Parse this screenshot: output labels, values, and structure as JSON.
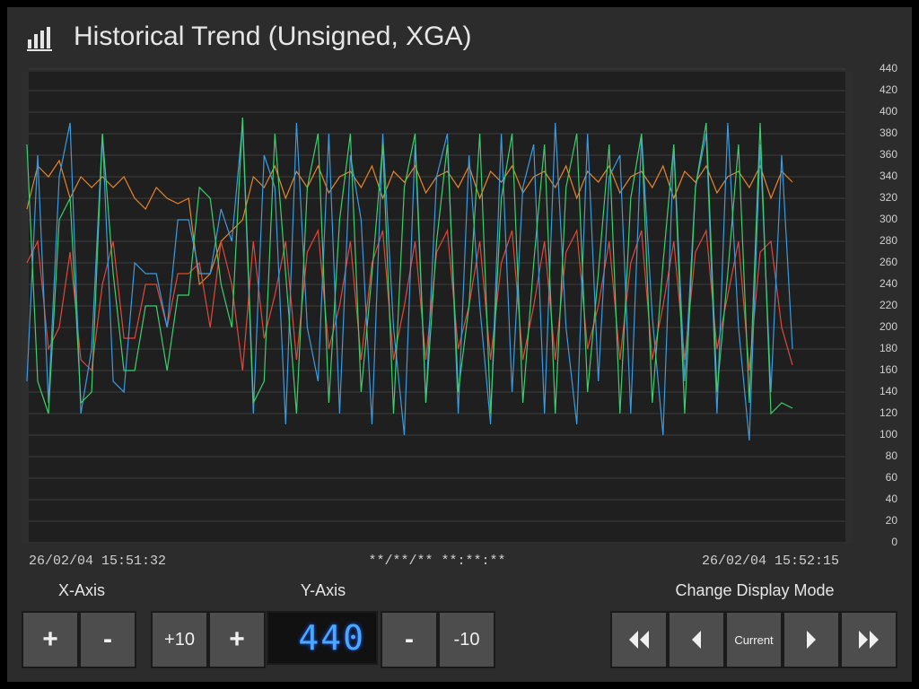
{
  "header": {
    "title": "Historical Trend (Unsigned, XGA)"
  },
  "chart_data": {
    "type": "line",
    "ylim": [
      0,
      440
    ],
    "yticks": [
      0,
      20,
      40,
      60,
      80,
      100,
      120,
      140,
      160,
      180,
      200,
      220,
      240,
      260,
      280,
      300,
      320,
      340,
      360,
      380,
      400,
      420,
      440
    ],
    "grid": true,
    "x_labels": {
      "start": "26/02/04 15:51:32",
      "middle": "**/**/** **:**:**",
      "end": "26/02/04 15:52:15"
    },
    "series": [
      {
        "color": "#e8842a",
        "values": [
          310,
          350,
          340,
          355,
          320,
          340,
          330,
          340,
          330,
          340,
          320,
          310,
          330,
          320,
          315,
          320,
          240,
          250,
          280,
          290,
          300,
          340,
          330,
          350,
          320,
          345,
          330,
          350,
          325,
          340,
          345,
          330,
          350,
          320,
          345,
          335,
          350,
          325,
          340,
          345,
          330,
          350,
          320,
          345,
          335,
          350,
          325,
          340,
          345,
          330,
          350,
          320,
          345,
          335,
          350,
          325,
          340,
          345,
          330,
          350,
          320,
          345,
          335,
          350,
          325,
          340,
          345,
          330,
          350,
          320,
          345,
          335
        ]
      },
      {
        "color": "#e0483a",
        "values": [
          260,
          280,
          180,
          200,
          270,
          170,
          160,
          240,
          280,
          190,
          190,
          240,
          240,
          200,
          250,
          250,
          260,
          200,
          280,
          240,
          160,
          280,
          190,
          230,
          280,
          170,
          270,
          290,
          180,
          220,
          280,
          170,
          260,
          290,
          170,
          220,
          280,
          170,
          270,
          290,
          180,
          220,
          280,
          170,
          260,
          290,
          170,
          220,
          280,
          170,
          270,
          290,
          180,
          220,
          280,
          170,
          260,
          290,
          170,
          220,
          280,
          170,
          270,
          290,
          180,
          230,
          280,
          160,
          270,
          280,
          200,
          165
        ]
      },
      {
        "color": "#3a9be0",
        "values": [
          150,
          360,
          130,
          340,
          390,
          120,
          180,
          380,
          150,
          140,
          260,
          250,
          250,
          200,
          300,
          300,
          250,
          250,
          310,
          280,
          390,
          120,
          360,
          330,
          110,
          390,
          200,
          150,
          380,
          120,
          360,
          300,
          110,
          380,
          200,
          100,
          370,
          130,
          340,
          380,
          120,
          360,
          220,
          110,
          380,
          140,
          330,
          370,
          120,
          390,
          200,
          110,
          380,
          150,
          340,
          360,
          120,
          380,
          210,
          100,
          370,
          150,
          330,
          380,
          120,
          390,
          200,
          95,
          370,
          140,
          360,
          180
        ]
      },
      {
        "color": "#3ccf6a",
        "values": [
          370,
          150,
          120,
          300,
          320,
          130,
          140,
          380,
          250,
          160,
          160,
          220,
          220,
          160,
          230,
          230,
          330,
          320,
          240,
          200,
          395,
          130,
          150,
          380,
          250,
          120,
          330,
          380,
          130,
          300,
          380,
          140,
          250,
          370,
          120,
          330,
          380,
          130,
          280,
          370,
          140,
          220,
          380,
          120,
          320,
          380,
          130,
          260,
          370,
          120,
          330,
          380,
          140,
          250,
          370,
          120,
          320,
          380,
          130,
          260,
          370,
          120,
          330,
          390,
          140,
          250,
          370,
          130,
          390,
          120,
          130,
          125
        ]
      }
    ]
  },
  "controls": {
    "x_axis": {
      "label": "X-Axis",
      "buttons": [
        "+",
        "-"
      ]
    },
    "y_axis": {
      "label": "Y-Axis",
      "buttons": [
        "+10",
        "+",
        "-",
        "-10"
      ],
      "display": 440
    },
    "display_mode": {
      "label": "Change Display Mode",
      "buttons": [
        "Current"
      ]
    }
  }
}
